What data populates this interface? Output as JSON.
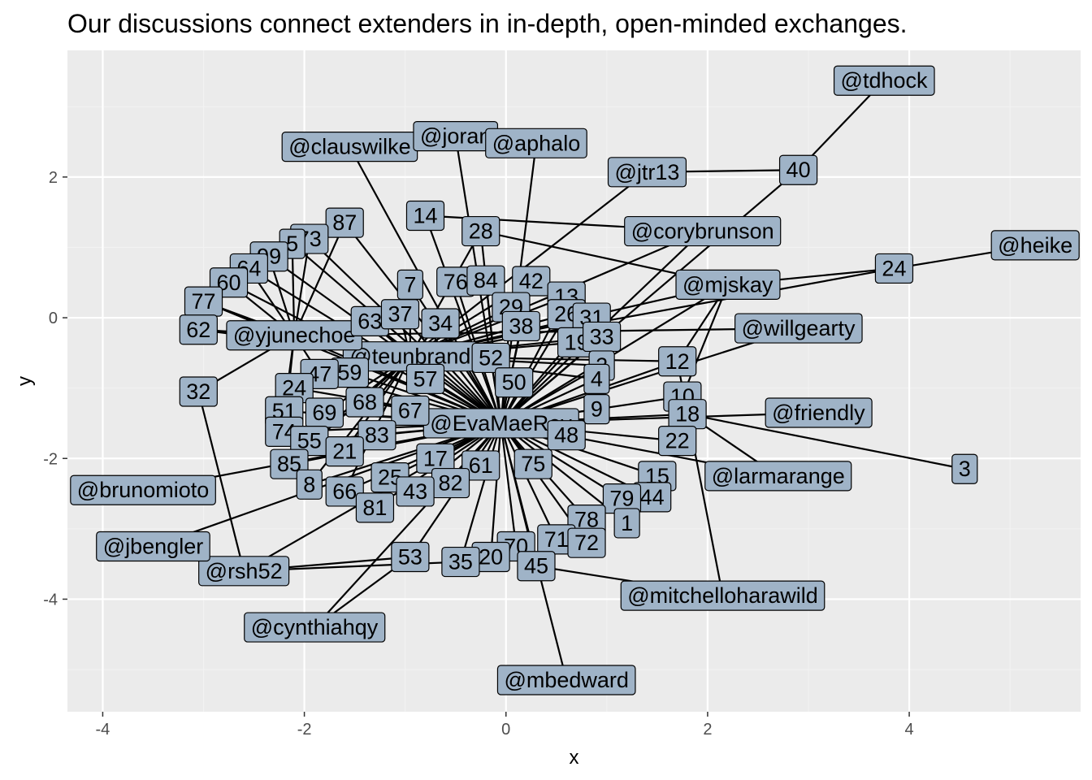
{
  "chart_data": {
    "type": "scatter",
    "subtype": "network-graph",
    "title": "Our discussions connect extenders in in-depth, open-minded exchanges.",
    "xlabel": "x",
    "ylabel": "y",
    "xlim": [
      -4.35,
      5.7
    ],
    "ylim": [
      -5.6,
      3.8
    ],
    "x_ticks": [
      -4,
      -2,
      0,
      2,
      4
    ],
    "y_ticks": [
      -4,
      -2,
      0,
      2
    ],
    "x_tick_labels": [
      "-4",
      "-2",
      "0",
      "2",
      "4"
    ],
    "y_tick_labels": [
      "-4",
      "-2",
      "0",
      "2"
    ],
    "grid": true,
    "legend": "none",
    "colors": {
      "panel_background": "#ebebeb",
      "grid_major": "#ffffff",
      "grid_minor": "#f2f2f2",
      "node_fill": "#9fb3c7",
      "node_border": "#000000",
      "edge": "#000000"
    },
    "nodes": [
      {
        "label": "@EvaMaeRey",
        "x": -0.05,
        "y": -1.5
      },
      {
        "label": "@teunbrand",
        "x": -0.95,
        "y": -0.55
      },
      {
        "label": "@yjunechoe",
        "x": -2.1,
        "y": -0.25
      },
      {
        "label": "@clauswilke",
        "x": -1.55,
        "y": 2.43
      },
      {
        "label": "@joran",
        "x": -0.5,
        "y": 2.58
      },
      {
        "label": "@aphalo",
        "x": 0.3,
        "y": 2.48
      },
      {
        "label": "@jtr13",
        "x": 1.4,
        "y": 2.07
      },
      {
        "label": "@tdhock",
        "x": 3.75,
        "y": 3.37
      },
      {
        "label": "@corybrunson",
        "x": 1.95,
        "y": 1.23
      },
      {
        "label": "@heike",
        "x": 5.25,
        "y": 1.03
      },
      {
        "label": "@mjskay",
        "x": 2.2,
        "y": 0.47
      },
      {
        "label": "@willgearty",
        "x": 2.9,
        "y": -0.15
      },
      {
        "label": "@friendly",
        "x": 3.1,
        "y": -1.35
      },
      {
        "label": "@larmarange",
        "x": 2.7,
        "y": -2.25
      },
      {
        "label": "@mitchelloharawild",
        "x": 2.15,
        "y": -3.95
      },
      {
        "label": "@mbedward",
        "x": 0.6,
        "y": -5.15
      },
      {
        "label": "@cynthiahqy",
        "x": -1.9,
        "y": -4.4
      },
      {
        "label": "@rsh52",
        "x": -2.6,
        "y": -3.6
      },
      {
        "label": "@jbengler",
        "x": -3.5,
        "y": -3.25
      },
      {
        "label": "@brunomioto",
        "x": -3.6,
        "y": -2.45
      },
      {
        "label": "40",
        "x": 2.9,
        "y": 2.1
      },
      {
        "label": "24",
        "x": 3.85,
        "y": 0.7
      },
      {
        "label": "3",
        "x": 4.55,
        "y": -2.15
      },
      {
        "label": "32",
        "x": -3.05,
        "y": -1.05
      },
      {
        "label": "87",
        "x": -1.6,
        "y": 1.35
      },
      {
        "label": "73",
        "x": -1.95,
        "y": 1.12
      },
      {
        "label": "5",
        "x": -2.12,
        "y": 1.05
      },
      {
        "label": "99",
        "x": -2.35,
        "y": 0.87
      },
      {
        "label": "64",
        "x": -2.55,
        "y": 0.7
      },
      {
        "label": "60",
        "x": -2.75,
        "y": 0.5
      },
      {
        "label": "77",
        "x": -3.0,
        "y": 0.23
      },
      {
        "label": "62",
        "x": -3.05,
        "y": -0.17
      },
      {
        "label": "14",
        "x": -0.8,
        "y": 1.45
      },
      {
        "label": "28",
        "x": -0.25,
        "y": 1.23
      },
      {
        "label": "7",
        "x": -0.95,
        "y": 0.47
      },
      {
        "label": "76",
        "x": -0.5,
        "y": 0.51
      },
      {
        "label": "84",
        "x": -0.2,
        "y": 0.53
      },
      {
        "label": "42",
        "x": 0.25,
        "y": 0.52
      },
      {
        "label": "13",
        "x": 0.6,
        "y": 0.3
      },
      {
        "label": "29",
        "x": 0.05,
        "y": 0.15
      },
      {
        "label": "26",
        "x": 0.6,
        "y": 0.05
      },
      {
        "label": "31",
        "x": 0.85,
        "y": 0.0
      },
      {
        "label": "63",
        "x": -1.35,
        "y": -0.05
      },
      {
        "label": "37",
        "x": -1.05,
        "y": 0.05
      },
      {
        "label": "34",
        "x": -0.65,
        "y": -0.08
      },
      {
        "label": "38",
        "x": 0.15,
        "y": -0.12
      },
      {
        "label": "19",
        "x": 0.7,
        "y": -0.35
      },
      {
        "label": "33",
        "x": 0.95,
        "y": -0.27
      },
      {
        "label": "2",
        "x": 0.95,
        "y": -0.68
      },
      {
        "label": "12",
        "x": 1.7,
        "y": -0.62
      },
      {
        "label": "52",
        "x": -0.15,
        "y": -0.57
      },
      {
        "label": "50",
        "x": 0.08,
        "y": -0.92
      },
      {
        "label": "4",
        "x": 0.9,
        "y": -0.87
      },
      {
        "label": "57",
        "x": -0.8,
        "y": -0.87
      },
      {
        "label": "59",
        "x": -1.55,
        "y": -0.78
      },
      {
        "label": "47",
        "x": -1.85,
        "y": -0.8
      },
      {
        "label": "24b",
        "x": -2.1,
        "y": -1.0
      },
      {
        "label": "10",
        "x": 1.75,
        "y": -1.12
      },
      {
        "label": "18",
        "x": 1.8,
        "y": -1.37
      },
      {
        "label": "9",
        "x": 0.9,
        "y": -1.3
      },
      {
        "label": "68",
        "x": -1.4,
        "y": -1.2
      },
      {
        "label": "67",
        "x": -0.95,
        "y": -1.32
      },
      {
        "label": "69",
        "x": -1.8,
        "y": -1.35
      },
      {
        "label": "51",
        "x": -2.2,
        "y": -1.33
      },
      {
        "label": "74",
        "x": -2.2,
        "y": -1.62
      },
      {
        "label": "55",
        "x": -1.95,
        "y": -1.75
      },
      {
        "label": "83",
        "x": -1.28,
        "y": -1.67
      },
      {
        "label": "21",
        "x": -1.6,
        "y": -1.9
      },
      {
        "label": "48",
        "x": 0.6,
        "y": -1.67
      },
      {
        "label": "22",
        "x": 1.7,
        "y": -1.75
      },
      {
        "label": "17",
        "x": -0.7,
        "y": -2.0
      },
      {
        "label": "61",
        "x": -0.25,
        "y": -2.1
      },
      {
        "label": "75",
        "x": 0.27,
        "y": -2.08
      },
      {
        "label": "85",
        "x": -2.15,
        "y": -2.08
      },
      {
        "label": "25",
        "x": -1.15,
        "y": -2.27
      },
      {
        "label": "82",
        "x": -0.55,
        "y": -2.35
      },
      {
        "label": "43",
        "x": -0.9,
        "y": -2.47
      },
      {
        "label": "8",
        "x": -1.95,
        "y": -2.37
      },
      {
        "label": "66",
        "x": -1.6,
        "y": -2.47
      },
      {
        "label": "81",
        "x": -1.3,
        "y": -2.7
      },
      {
        "label": "15",
        "x": 1.5,
        "y": -2.25
      },
      {
        "label": "44",
        "x": 1.45,
        "y": -2.55
      },
      {
        "label": "79",
        "x": 1.15,
        "y": -2.57
      },
      {
        "label": "78",
        "x": 0.8,
        "y": -2.87
      },
      {
        "label": "1",
        "x": 1.2,
        "y": -2.92
      },
      {
        "label": "71",
        "x": 0.5,
        "y": -3.15
      },
      {
        "label": "72",
        "x": 0.8,
        "y": -3.2
      },
      {
        "label": "70",
        "x": 0.1,
        "y": -3.25
      },
      {
        "label": "20",
        "x": -0.15,
        "y": -3.4
      },
      {
        "label": "35",
        "x": -0.45,
        "y": -3.47
      },
      {
        "label": "45",
        "x": 0.3,
        "y": -3.53
      },
      {
        "label": "53",
        "x": -0.95,
        "y": -3.4
      }
    ],
    "edges": [
      [
        "@tdhock",
        "40"
      ],
      [
        "40",
        "@jtr13"
      ],
      [
        "40",
        "@EvaMaeRey"
      ],
      [
        "@heike",
        "24"
      ],
      [
        "24",
        "@mjskay"
      ],
      [
        "24",
        "@teunbrand"
      ],
      [
        "@clauswilke",
        "@EvaMaeRey"
      ],
      [
        "@joran",
        "@EvaMaeRey"
      ],
      [
        "@aphalo",
        "@EvaMaeRey"
      ],
      [
        "@jtr13",
        "@teunbrand"
      ],
      [
        "@corybrunson",
        "@EvaMaeRey"
      ],
      [
        "@corybrunson",
        "@teunbrand"
      ],
      [
        "@corybrunson",
        "14"
      ],
      [
        "@mjskay",
        "@EvaMaeRey"
      ],
      [
        "@mjskay",
        "@teunbrand"
      ],
      [
        "@mjskay",
        "28"
      ],
      [
        "@mjskay",
        "12"
      ],
      [
        "@mjskay",
        "10"
      ],
      [
        "@willgearty",
        "@EvaMaeRey"
      ],
      [
        "@willgearty",
        "@yjunechoe"
      ],
      [
        "@friendly",
        "@EvaMaeRey"
      ],
      [
        "3",
        "18"
      ],
      [
        "@larmarange",
        "18"
      ],
      [
        "@larmarange",
        "@EvaMaeRey"
      ],
      [
        "@mitchelloharawild",
        "12"
      ],
      [
        "@mitchelloharawild",
        "45"
      ],
      [
        "@mbedward",
        "@EvaMaeRey"
      ],
      [
        "@cynthiahqy",
        "@EvaMaeRey"
      ],
      [
        "@cynthiahqy",
        "53"
      ],
      [
        "@rsh52",
        "32"
      ],
      [
        "@rsh52",
        "@EvaMaeRey"
      ],
      [
        "@rsh52",
        "53"
      ],
      [
        "@rsh52",
        "35"
      ],
      [
        "@jbengler",
        "@EvaMaeRey"
      ],
      [
        "@brunomioto",
        "@EvaMaeRey"
      ],
      [
        "32",
        "@yjunechoe"
      ],
      [
        "@yjunechoe",
        "87"
      ],
      [
        "@yjunechoe",
        "73"
      ],
      [
        "@yjunechoe",
        "5"
      ],
      [
        "@yjunechoe",
        "99"
      ],
      [
        "@yjunechoe",
        "64"
      ],
      [
        "@yjunechoe",
        "60"
      ],
      [
        "@yjunechoe",
        "77"
      ],
      [
        "@yjunechoe",
        "62"
      ],
      [
        "@yjunechoe",
        "@EvaMaeRey"
      ],
      [
        "@yjunechoe",
        "@teunbrand"
      ],
      [
        "@yjunechoe",
        "47"
      ],
      [
        "@yjunechoe",
        "51"
      ],
      [
        "@yjunechoe",
        "74"
      ],
      [
        "87",
        "@EvaMaeRey"
      ],
      [
        "73",
        "@EvaMaeRey"
      ],
      [
        "5",
        "@EvaMaeRey"
      ],
      [
        "99",
        "@EvaMaeRey"
      ],
      [
        "64",
        "@EvaMaeRey"
      ],
      [
        "60",
        "@EvaMaeRey"
      ],
      [
        "77",
        "@EvaMaeRey"
      ],
      [
        "62",
        "@teunbrand"
      ],
      [
        "14",
        "@EvaMaeRey"
      ],
      [
        "28",
        "@EvaMaeRey"
      ],
      [
        "28",
        "@teunbrand"
      ],
      [
        "7",
        "@EvaMaeRey"
      ],
      [
        "76",
        "@EvaMaeRey"
      ],
      [
        "84",
        "@EvaMaeRey"
      ],
      [
        "42",
        "@EvaMaeRey"
      ],
      [
        "13",
        "@EvaMaeRey"
      ],
      [
        "29",
        "@EvaMaeRey"
      ],
      [
        "26",
        "@EvaMaeRey"
      ],
      [
        "31",
        "@EvaMaeRey"
      ],
      [
        "63",
        "@EvaMaeRey"
      ],
      [
        "37",
        "@EvaMaeRey"
      ],
      [
        "34",
        "@EvaMaeRey"
      ],
      [
        "38",
        "@EvaMaeRey"
      ],
      [
        "19",
        "@EvaMaeRey"
      ],
      [
        "33",
        "@EvaMaeRey"
      ],
      [
        "2",
        "@EvaMaeRey"
      ],
      [
        "12",
        "@EvaMaeRey"
      ],
      [
        "52",
        "@EvaMaeRey"
      ],
      [
        "50",
        "@EvaMaeRey"
      ],
      [
        "4",
        "@EvaMaeRey"
      ],
      [
        "57",
        "@EvaMaeRey"
      ],
      [
        "59",
        "@EvaMaeRey"
      ],
      [
        "47",
        "@EvaMaeRey"
      ],
      [
        "24b",
        "@EvaMaeRey"
      ],
      [
        "10",
        "@EvaMaeRey"
      ],
      [
        "18",
        "@EvaMaeRey"
      ],
      [
        "9",
        "@EvaMaeRey"
      ],
      [
        "68",
        "@EvaMaeRey"
      ],
      [
        "67",
        "@EvaMaeRey"
      ],
      [
        "69",
        "@EvaMaeRey"
      ],
      [
        "51",
        "@EvaMaeRey"
      ],
      [
        "74",
        "@EvaMaeRey"
      ],
      [
        "55",
        "@EvaMaeRey"
      ],
      [
        "83",
        "@EvaMaeRey"
      ],
      [
        "21",
        "@EvaMaeRey"
      ],
      [
        "48",
        "@EvaMaeRey"
      ],
      [
        "22",
        "@EvaMaeRey"
      ],
      [
        "17",
        "@EvaMaeRey"
      ],
      [
        "61",
        "@EvaMaeRey"
      ],
      [
        "75",
        "@EvaMaeRey"
      ],
      [
        "85",
        "@EvaMaeRey"
      ],
      [
        "25",
        "@EvaMaeRey"
      ],
      [
        "82",
        "@EvaMaeRey"
      ],
      [
        "43",
        "@EvaMaeRey"
      ],
      [
        "8",
        "@EvaMaeRey"
      ],
      [
        "66",
        "@EvaMaeRey"
      ],
      [
        "81",
        "@EvaMaeRey"
      ],
      [
        "15",
        "@EvaMaeRey"
      ],
      [
        "44",
        "@EvaMaeRey"
      ],
      [
        "79",
        "@EvaMaeRey"
      ],
      [
        "78",
        "@EvaMaeRey"
      ],
      [
        "1",
        "@EvaMaeRey"
      ],
      [
        "71",
        "@EvaMaeRey"
      ],
      [
        "72",
        "@EvaMaeRey"
      ],
      [
        "70",
        "@EvaMaeRey"
      ],
      [
        "20",
        "@EvaMaeRey"
      ],
      [
        "35",
        "@EvaMaeRey"
      ],
      [
        "45",
        "@EvaMaeRey"
      ],
      [
        "53",
        "@EvaMaeRey"
      ],
      [
        "13",
        "@teunbrand"
      ],
      [
        "42",
        "@teunbrand"
      ],
      [
        "29",
        "@teunbrand"
      ],
      [
        "26",
        "@teunbrand"
      ],
      [
        "31",
        "@teunbrand"
      ],
      [
        "38",
        "@teunbrand"
      ],
      [
        "19",
        "@teunbrand"
      ],
      [
        "33",
        "@teunbrand"
      ],
      [
        "2",
        "@teunbrand"
      ],
      [
        "12",
        "@teunbrand"
      ],
      [
        "4",
        "@teunbrand"
      ],
      [
        "7",
        "@teunbrand"
      ],
      [
        "37",
        "@teunbrand"
      ],
      [
        "34",
        "@teunbrand"
      ],
      [
        "63",
        "@teunbrand"
      ],
      [
        "59",
        "@teunbrand"
      ],
      [
        "68",
        "@teunbrand"
      ],
      [
        "85",
        "@teunbrand"
      ],
      [
        "66",
        "@teunbrand"
      ],
      [
        "8",
        "@teunbrand"
      ],
      [
        "21",
        "@teunbrand"
      ],
      [
        "55",
        "@teunbrand"
      ],
      [
        "69",
        "@teunbrand"
      ]
    ]
  }
}
